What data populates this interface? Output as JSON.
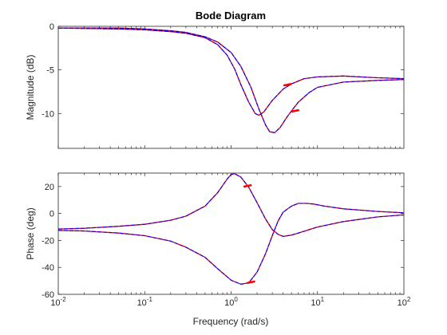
{
  "chart_data": {
    "type": "line",
    "title": "Bode Diagram",
    "xlabel": "Frequency  (rad/s)",
    "xscale": "log",
    "grid": false,
    "legend": "none",
    "colors": {
      "blue": "#0000ff",
      "red": "#ff0000",
      "axis": "#262626"
    },
    "panels": [
      {
        "ylabel": "Magnitude (dB)",
        "xlim": [
          0.01,
          100
        ],
        "ylim": [
          -14,
          0
        ],
        "yticks": [
          0,
          -5,
          -10
        ],
        "ytick_labels": [
          "0",
          "-5",
          "-10"
        ],
        "series": [
          {
            "x": [
              0.01,
              0.05,
              0.1,
              0.2,
              0.3,
              0.5,
              0.7,
              0.9,
              1.1,
              1.3,
              1.6,
              1.9,
              2.1,
              2.4,
              3,
              4,
              5,
              7,
              10,
              20,
              50,
              100
            ],
            "y": [
              -0.2,
              -0.3,
              -0.4,
              -0.6,
              -0.8,
              -1.3,
              -2.1,
              -3.3,
              -4.9,
              -6.7,
              -8.7,
              -10.0,
              -10.2,
              -9.8,
              -8.5,
              -7.2,
              -6.6,
              -6.0,
              -5.8,
              -5.7,
              -5.9,
              -6.0
            ]
          },
          {
            "x": [
              0.01,
              0.05,
              0.1,
              0.2,
              0.3,
              0.5,
              0.7,
              1.0,
              1.3,
              1.7,
              2.1,
              2.5,
              2.8,
              3.2,
              3.7,
              4.3,
              5,
              6,
              8,
              10,
              20,
              50,
              100
            ],
            "y": [
              -0.2,
              -0.2,
              -0.3,
              -0.5,
              -0.7,
              -1.2,
              -1.8,
              -3.0,
              -4.6,
              -7.0,
              -9.5,
              -11.3,
              -12.1,
              -12.2,
              -11.6,
              -10.6,
              -9.7,
              -8.7,
              -7.6,
              -7.0,
              -6.4,
              -6.2,
              -6.1
            ]
          }
        ],
        "markers": [
          {
            "x": 4.5,
            "y": -6.7
          },
          {
            "x": 5.5,
            "y": -9.7
          }
        ]
      },
      {
        "ylabel": "Phase (deg)",
        "xlim": [
          0.01,
          100
        ],
        "ylim": [
          -60,
          30
        ],
        "yticks": [
          20,
          0,
          -20,
          -40,
          -60
        ],
        "ytick_labels": [
          "20",
          "0",
          "-20",
          "-40",
          "-60"
        ],
        "series": [
          {
            "x": [
              0.01,
              0.02,
              0.05,
              0.1,
              0.2,
              0.3,
              0.5,
              0.7,
              0.9,
              1.0,
              1.1,
              1.3,
              1.6,
              2.0,
              2.5,
              3.0,
              3.5,
              4.0,
              5.0,
              6.0,
              8.0,
              10,
              20,
              50,
              100
            ],
            "y": [
              -11.5,
              -11,
              -9.5,
              -8,
              -5,
              -2,
              5.5,
              15.5,
              25.5,
              29,
              29.5,
              27,
              19.5,
              8,
              -4,
              -12,
              -15.5,
              -17,
              -16,
              -14.5,
              -12,
              -10,
              -6,
              -2.5,
              -1
            ]
          },
          {
            "x": [
              0.01,
              0.02,
              0.05,
              0.1,
              0.2,
              0.3,
              0.5,
              0.7,
              1.0,
              1.3,
              1.6,
              2.0,
              2.5,
              3.0,
              3.5,
              4.0,
              5.0,
              6.0,
              7.5,
              9,
              12,
              20,
              50,
              100
            ],
            "y": [
              -12.5,
              -13,
              -14.5,
              -16.5,
              -20.5,
              -25,
              -32.5,
              -41,
              -49.5,
              -52.5,
              -51.5,
              -43.5,
              -30,
              -16.5,
              -5.5,
              1,
              5.5,
              7.5,
              7.5,
              7,
              5.5,
              3.5,
              1.5,
              0.5
            ]
          }
        ],
        "markers": [
          {
            "x": 1.55,
            "y": 20.5
          },
          {
            "x": 1.7,
            "y": -51
          }
        ]
      }
    ],
    "xticks": [
      0.01,
      0.1,
      1,
      10,
      100
    ],
    "xtick_labels": [
      {
        "base": "10",
        "exp": "-2"
      },
      {
        "base": "10",
        "exp": "-1"
      },
      {
        "base": "10",
        "exp": "0"
      },
      {
        "base": "10",
        "exp": "1"
      },
      {
        "base": "10",
        "exp": "2"
      }
    ]
  }
}
